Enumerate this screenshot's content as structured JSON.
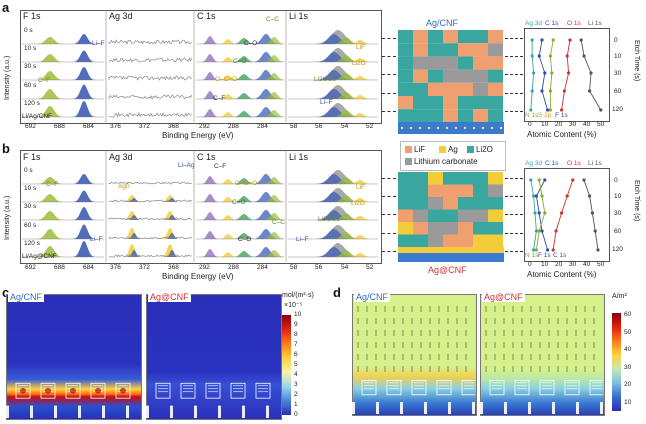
{
  "panels": {
    "a": {
      "letter": "a",
      "headers": [
        "F 1s",
        "Ag 3d",
        "C 1s",
        "Li 1s"
      ],
      "times": [
        "0 s",
        "10 s",
        "30 s",
        "60 s",
        "120 s"
      ],
      "sample": "Li/Ag/CNF",
      "annotations": [
        "C–C",
        "Li–F",
        "C–O",
        "C=O",
        "LiF",
        "Li2O",
        "C–F",
        "O–C=O",
        "Li2CO3",
        "C–F",
        "Li–F"
      ],
      "xticks_f": [
        "692",
        "688",
        "684"
      ],
      "xticks_ag": [
        "376",
        "372",
        "368"
      ],
      "xticks_c": [
        "292",
        "288",
        "284"
      ],
      "xticks_li": [
        "58",
        "56",
        "54",
        "52"
      ],
      "xlabel": "Binding Energy (eV)",
      "ylabel": "Intensity (a.u.)",
      "model_title": "Ag/CNF",
      "atomic_legend_top": [
        "Ag 3d",
        "C 1s"
      ],
      "atomic_legend_top2": [
        "O 1s",
        "Li 1s"
      ],
      "atomic_legend_bottom": [
        "N 1s",
        "S 2p",
        "F 1s"
      ],
      "atomic_xlabel": "Atomic Content (%)",
      "atomic_xticks": [
        "0",
        "10",
        "20",
        "30",
        "40",
        "50"
      ],
      "etch_label": "Etch Time (s)",
      "etch_ticks": [
        "0",
        "10",
        "30",
        "60",
        "120"
      ]
    },
    "b": {
      "letter": "b",
      "headers": [
        "F 1s",
        "Ag 3d",
        "C 1s",
        "Li 1s"
      ],
      "times": [
        "0 s",
        "10 s",
        "30 s",
        "60 s",
        "120 s"
      ],
      "sample": "Li/Ag@CNF",
      "annotations": [
        "Li–Ag",
        "C–F",
        "Ag0",
        "O–C=O",
        "C=O",
        "C–F",
        "Li–F",
        "C–C",
        "C–O",
        "LiF",
        "Li2O",
        "Li2CO3",
        "Li–F"
      ],
      "xlabel": "Binding Energy (eV)",
      "ylabel": "Intensity (a.u.)",
      "model_title": "Ag@CNF",
      "legend": [
        "LiF",
        "Ag",
        "Li2O",
        "Lithium carbonate"
      ],
      "atomic_legend_top": [
        "Ag 3d",
        "C 1s"
      ],
      "atomic_legend_top2": [
        "O 1s",
        "Li 1s"
      ],
      "atomic_legend_bottom": [
        "N 1s",
        "F 1s",
        "C 1s"
      ],
      "atomic_xlabel": "Atomic Content (%)",
      "etch_label": "Etch Time (s)"
    },
    "c": {
      "letter": "c",
      "left_title": "Ag/CNF",
      "right_title": "Ag@CNF",
      "unit": "mol/(m²·s)",
      "scale": "×10⁻⁵",
      "ticks": [
        "10",
        "9",
        "8",
        "7",
        "6",
        "5",
        "4",
        "3",
        "2",
        "1",
        "0"
      ]
    },
    "d": {
      "letter": "d",
      "left_title": "Ag/CNF",
      "right_title": "Ag@CNF",
      "unit": "A/m²",
      "ticks": [
        "60",
        "50",
        "40",
        "30",
        "20",
        "10"
      ]
    }
  },
  "colors": {
    "blue": "#2f4fa6",
    "green": "#8aa832",
    "gray": "#999999",
    "red": "#cc3333",
    "teal": "#3aa6a0",
    "orange": "#f0a070",
    "yellow": "#f3cc3a"
  }
}
